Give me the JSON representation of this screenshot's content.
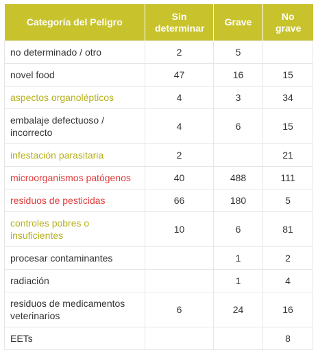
{
  "table": {
    "headers": [
      "Categoría del Peligro",
      "Sin determinar",
      "Grave",
      "No grave"
    ],
    "rows": [
      {
        "category": "no determinado / otro",
        "color": "#333333",
        "sin_determinar": "2",
        "grave": "5",
        "no_grave": ""
      },
      {
        "category": "novel food",
        "color": "#333333",
        "sin_determinar": "47",
        "grave": "16",
        "no_grave": "15"
      },
      {
        "category": "aspectos organolépticos",
        "color": "#b5b01a",
        "sin_determinar": "4",
        "grave": "3",
        "no_grave": "34"
      },
      {
        "category": "embalaje defectuoso / incorrecto",
        "color": "#333333",
        "sin_determinar": "4",
        "grave": "6",
        "no_grave": "15"
      },
      {
        "category": "infestación parasitaria",
        "color": "#b5b01a",
        "sin_determinar": "2",
        "grave": "",
        "no_grave": "21"
      },
      {
        "category": "microorganismos patógenos",
        "color": "#e03a3a",
        "sin_determinar": "40",
        "grave": "488",
        "no_grave": "111"
      },
      {
        "category": "residuos de pesticidas",
        "color": "#e03a3a",
        "sin_determinar": "66",
        "grave": "180",
        "no_grave": "5"
      },
      {
        "category": "controles pobres o insuficientes",
        "color": "#b5b01a",
        "sin_determinar": "10",
        "grave": "6",
        "no_grave": "81"
      },
      {
        "category": "procesar contaminantes",
        "color": "#333333",
        "sin_determinar": "",
        "grave": "1",
        "no_grave": "2"
      },
      {
        "category": "radiación",
        "color": "#333333",
        "sin_determinar": "",
        "grave": "1",
        "no_grave": "4"
      },
      {
        "category": "residuos de medicamentos veterinarios",
        "color": "#333333",
        "sin_determinar": "6",
        "grave": "24",
        "no_grave": "16"
      },
      {
        "category": "EETs",
        "color": "#333333",
        "sin_determinar": "",
        "grave": "",
        "no_grave": "8"
      }
    ]
  },
  "colors": {
    "header_bg": "#c8c32d",
    "header_text": "#ffffff",
    "border": "#e6e6e6"
  }
}
